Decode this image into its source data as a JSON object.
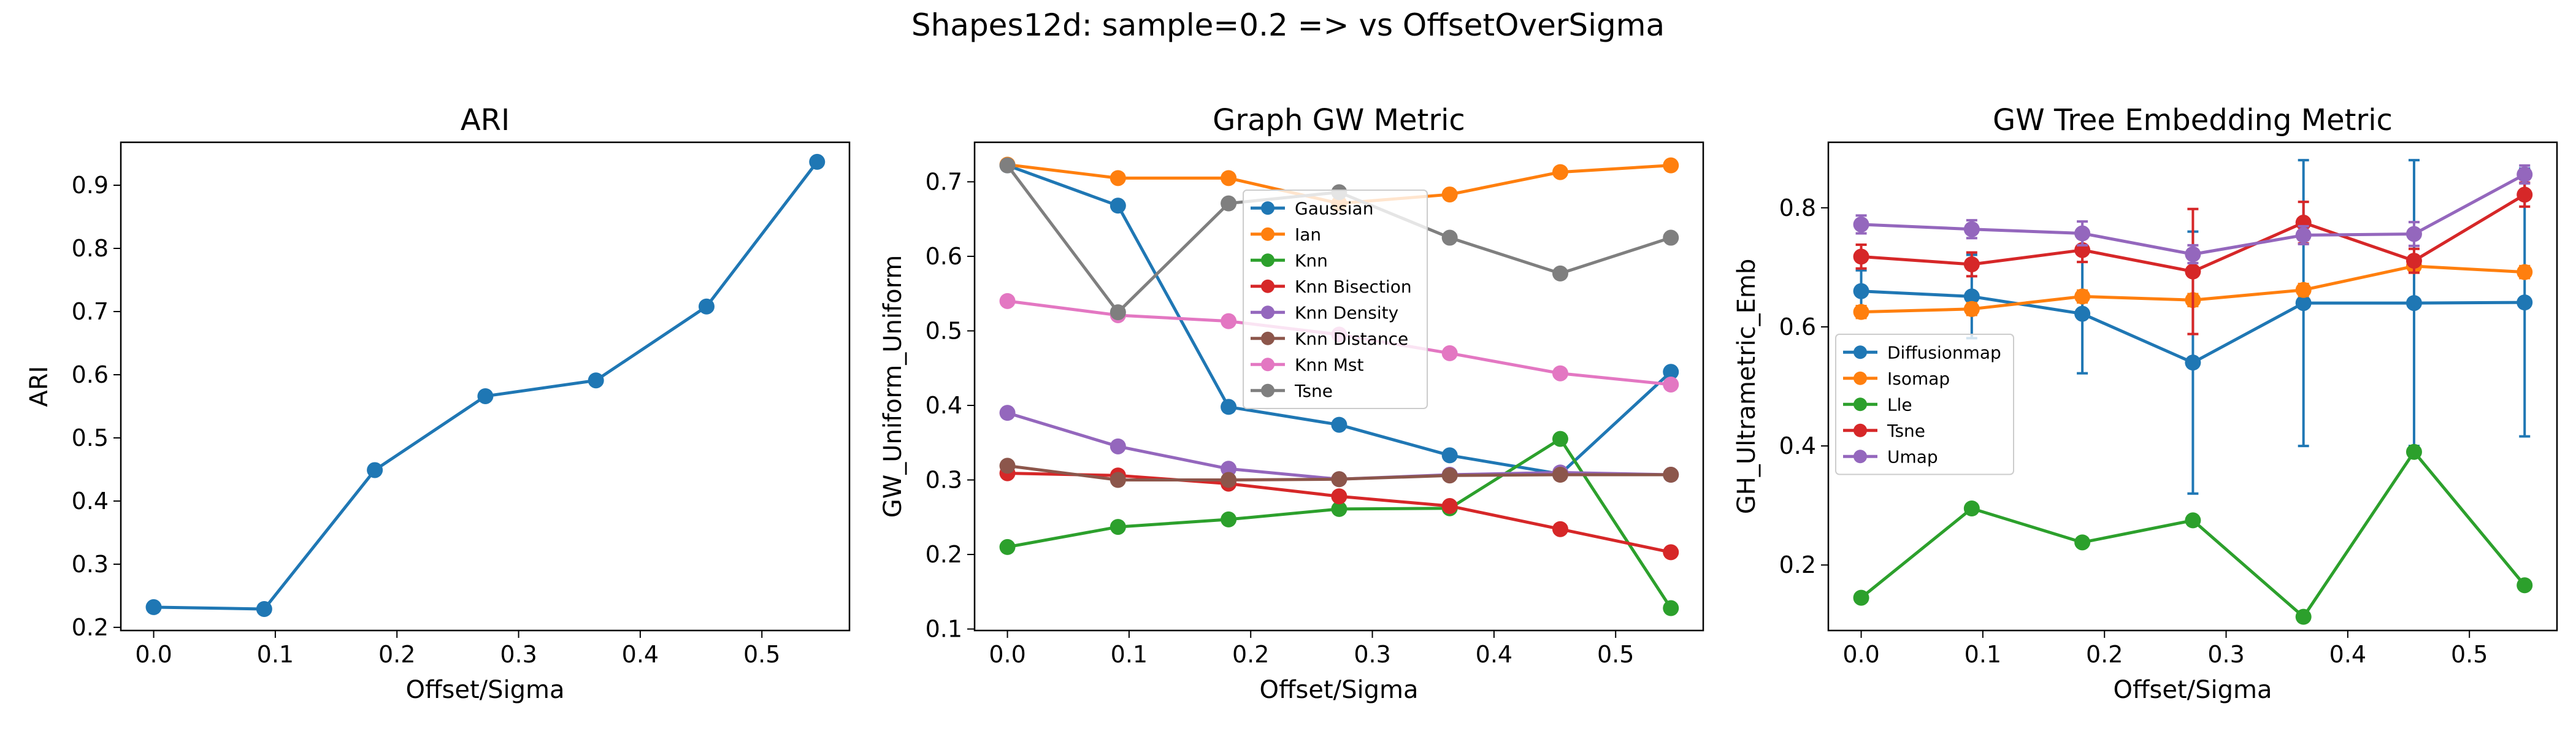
{
  "figure": {
    "suptitle": "Shapes12d: sample=0.2 => vs OffsetOverSigma"
  },
  "chart_data": [
    {
      "type": "line",
      "title": "ARI",
      "xlabel": "Offset/Sigma",
      "ylabel": "ARI",
      "xlim": [
        -0.027,
        0.572
      ],
      "ylim": [
        0.195,
        0.968
      ],
      "xticks": [
        0.0,
        0.1,
        0.2,
        0.3,
        0.4,
        0.5
      ],
      "xtick_labels": [
        "0.0",
        "0.1",
        "0.2",
        "0.3",
        "0.4",
        "0.5"
      ],
      "yticks": [
        0.2,
        0.3,
        0.4,
        0.5,
        0.6,
        0.7,
        0.8,
        0.9
      ],
      "ytick_labels": [
        "0.2",
        "0.3",
        "0.4",
        "0.5",
        "0.6",
        "0.7",
        "0.8",
        "0.9"
      ],
      "x": [
        0.0,
        0.0909,
        0.1818,
        0.2727,
        0.3636,
        0.4545,
        0.5454
      ],
      "series": [
        {
          "name": "ARI",
          "color": "#1f77b4",
          "values": [
            0.232,
            0.229,
            0.449,
            0.566,
            0.591,
            0.708,
            0.937
          ]
        }
      ]
    },
    {
      "type": "line",
      "title": "Graph GW Metric",
      "xlabel": "Offset/Sigma",
      "ylabel": "GW_Uniform_Uniform",
      "xlim": [
        -0.027,
        0.572
      ],
      "ylim": [
        0.098,
        0.753
      ],
      "xticks": [
        0.0,
        0.1,
        0.2,
        0.3,
        0.4,
        0.5
      ],
      "xtick_labels": [
        "0.0",
        "0.1",
        "0.2",
        "0.3",
        "0.4",
        "0.5"
      ],
      "yticks": [
        0.1,
        0.2,
        0.3,
        0.4,
        0.5,
        0.6,
        0.7
      ],
      "ytick_labels": [
        "0.1",
        "0.2",
        "0.3",
        "0.4",
        "0.5",
        "0.6",
        "0.7"
      ],
      "legend_position": "top-center",
      "x": [
        0.0,
        0.0909,
        0.1818,
        0.2727,
        0.3636,
        0.4545,
        0.5454
      ],
      "series": [
        {
          "name": "Gaussian",
          "color": "#1f77b4",
          "values": [
            0.722,
            0.668,
            0.398,
            0.374,
            0.333,
            0.308,
            0.445
          ]
        },
        {
          "name": "Ian",
          "color": "#ff7f0e",
          "values": [
            0.723,
            0.705,
            0.705,
            0.671,
            0.683,
            0.713,
            0.722
          ]
        },
        {
          "name": "Knn",
          "color": "#2ca02c",
          "values": [
            0.21,
            0.237,
            0.247,
            0.261,
            0.262,
            0.355,
            0.128
          ]
        },
        {
          "name": "Knn Bisection",
          "color": "#d62728",
          "values": [
            0.309,
            0.306,
            0.295,
            0.278,
            0.265,
            0.234,
            0.203
          ]
        },
        {
          "name": "Knn Density",
          "color": "#9467bd",
          "values": [
            0.39,
            0.345,
            0.315,
            0.301,
            0.307,
            0.31,
            0.307
          ]
        },
        {
          "name": "Knn Distance",
          "color": "#8c564b",
          "values": [
            0.319,
            0.3,
            0.3,
            0.301,
            0.306,
            0.307,
            0.307
          ]
        },
        {
          "name": "Knn Mst",
          "color": "#e377c2",
          "values": [
            0.54,
            0.521,
            0.513,
            0.495,
            0.47,
            0.443,
            0.428
          ]
        },
        {
          "name": "Tsne",
          "color": "#7f7f7f",
          "values": [
            0.722,
            0.525,
            0.671,
            0.686,
            0.625,
            0.577,
            0.625
          ]
        }
      ]
    },
    {
      "type": "line",
      "title": "GW Tree Embedding Metric",
      "xlabel": "Offset/Sigma",
      "ylabel": "GH_Ultrametric_Emb",
      "xlim": [
        -0.027,
        0.572
      ],
      "ylim": [
        0.09,
        0.91
      ],
      "xticks": [
        0.0,
        0.1,
        0.2,
        0.3,
        0.4,
        0.5
      ],
      "xtick_labels": [
        "0.0",
        "0.1",
        "0.2",
        "0.3",
        "0.4",
        "0.5"
      ],
      "yticks": [
        0.2,
        0.4,
        0.6,
        0.8
      ],
      "ytick_labels": [
        "0.2",
        "0.4",
        "0.6",
        "0.8"
      ],
      "legend_position": "center-left",
      "x": [
        0.0,
        0.0909,
        0.1818,
        0.2727,
        0.3636,
        0.4545,
        0.5454
      ],
      "series": [
        {
          "name": "Diffusionmap",
          "color": "#1f77b4",
          "values": [
            0.66,
            0.651,
            0.622,
            0.54,
            0.64,
            0.64,
            0.641
          ],
          "errors": [
            0.035,
            0.07,
            0.1,
            0.22,
            0.24,
            0.24,
            0.225
          ]
        },
        {
          "name": "Isomap",
          "color": "#ff7f0e",
          "values": [
            0.625,
            0.63,
            0.651,
            0.645,
            0.662,
            0.702,
            0.692
          ],
          "errors": [
            0.01,
            0.01,
            0.01,
            0.01,
            0.01,
            0.01,
            0.01
          ]
        },
        {
          "name": "Lle",
          "color": "#2ca02c",
          "values": [
            0.145,
            0.295,
            0.238,
            0.275,
            0.113,
            0.39,
            0.166
          ],
          "errors": [
            0,
            0,
            0,
            0,
            0,
            0,
            0
          ]
        },
        {
          "name": "Tsne",
          "color": "#d62728",
          "values": [
            0.718,
            0.705,
            0.729,
            0.693,
            0.775,
            0.711,
            0.822
          ],
          "errors": [
            0.02,
            0.02,
            0.02,
            0.105,
            0.035,
            0.02,
            0.02
          ]
        },
        {
          "name": "Umap",
          "color": "#9467bd",
          "values": [
            0.772,
            0.764,
            0.757,
            0.722,
            0.754,
            0.756,
            0.856
          ],
          "errors": [
            0.015,
            0.015,
            0.02,
            0.015,
            0.015,
            0.02,
            0.015
          ]
        }
      ]
    }
  ]
}
